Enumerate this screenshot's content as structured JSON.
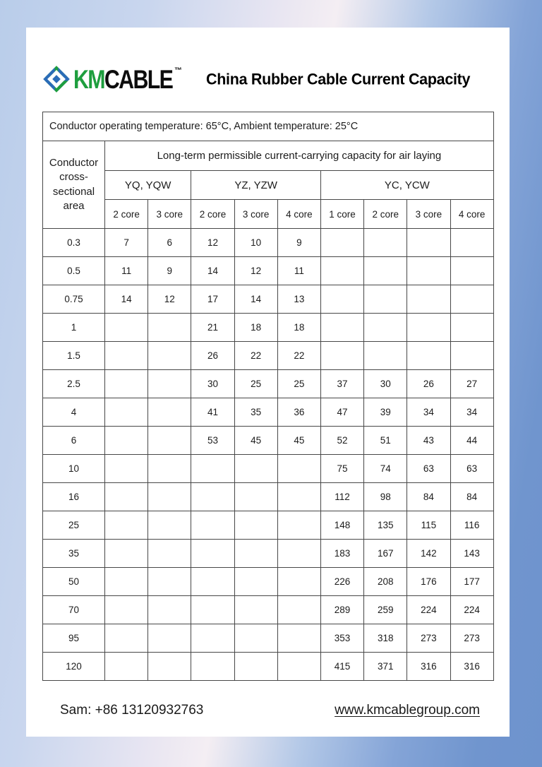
{
  "page": {
    "logo": {
      "km": "KM",
      "cable": "CABLE",
      "tm": "™"
    },
    "title": "China Rubber Cable Current Capacity",
    "table": {
      "temp_note": "Conductor operating temperature: 65°C, Ambient temperature: 25°C",
      "capacity_header": "Long-term permissible current-carrying capacity for air laying",
      "row_header": "Conductor cross-sectional area",
      "groups": [
        {
          "label": "YQ, YQW",
          "span": 2
        },
        {
          "label": "YZ, YZW",
          "span": 3
        },
        {
          "label": "YC, YCW",
          "span": 4
        }
      ],
      "core_labels": [
        "2 core",
        "3 core",
        "2 core",
        "3 core",
        "4 core",
        "1 core",
        "2 core",
        "3 core",
        "4 core"
      ],
      "rows": [
        {
          "area": "0.3",
          "values": [
            "7",
            "6",
            "12",
            "10",
            "9",
            "",
            "",
            "",
            ""
          ]
        },
        {
          "area": "0.5",
          "values": [
            "11",
            "9",
            "14",
            "12",
            "11",
            "",
            "",
            "",
            ""
          ]
        },
        {
          "area": "0.75",
          "values": [
            "14",
            "12",
            "17",
            "14",
            "13",
            "",
            "",
            "",
            ""
          ]
        },
        {
          "area": "1",
          "values": [
            "",
            "",
            "21",
            "18",
            "18",
            "",
            "",
            "",
            ""
          ]
        },
        {
          "area": "1.5",
          "values": [
            "",
            "",
            "26",
            "22",
            "22",
            "",
            "",
            "",
            ""
          ]
        },
        {
          "area": "2.5",
          "values": [
            "",
            "",
            "30",
            "25",
            "25",
            "37",
            "30",
            "26",
            "27"
          ]
        },
        {
          "area": "4",
          "values": [
            "",
            "",
            "41",
            "35",
            "36",
            "47",
            "39",
            "34",
            "34"
          ]
        },
        {
          "area": "6",
          "values": [
            "",
            "",
            "53",
            "45",
            "45",
            "52",
            "51",
            "43",
            "44"
          ]
        },
        {
          "area": "10",
          "values": [
            "",
            "",
            "",
            "",
            "",
            "75",
            "74",
            "63",
            "63"
          ]
        },
        {
          "area": "16",
          "values": [
            "",
            "",
            "",
            "",
            "",
            "112",
            "98",
            "84",
            "84"
          ]
        },
        {
          "area": "25",
          "values": [
            "",
            "",
            "",
            "",
            "",
            "148",
            "135",
            "115",
            "116"
          ]
        },
        {
          "area": "35",
          "values": [
            "",
            "",
            "",
            "",
            "",
            "183",
            "167",
            "142",
            "143"
          ]
        },
        {
          "area": "50",
          "values": [
            "",
            "",
            "",
            "",
            "",
            "226",
            "208",
            "176",
            "177"
          ]
        },
        {
          "area": "70",
          "values": [
            "",
            "",
            "",
            "",
            "",
            "289",
            "259",
            "224",
            "224"
          ]
        },
        {
          "area": "95",
          "values": [
            "",
            "",
            "",
            "",
            "",
            "353",
            "318",
            "273",
            "273"
          ]
        },
        {
          "area": "120",
          "values": [
            "",
            "",
            "",
            "",
            "",
            "415",
            "371",
            "316",
            "316"
          ]
        }
      ]
    },
    "footer": {
      "contact": "Sam: +86 13120932763",
      "website": "www.kmcablegroup.com"
    }
  },
  "colors": {
    "logo_green": "#1e9e3e",
    "logo_blue": "#2b6cb8",
    "background_blue": "#6e93cd",
    "background_light": "#f4eef3"
  }
}
